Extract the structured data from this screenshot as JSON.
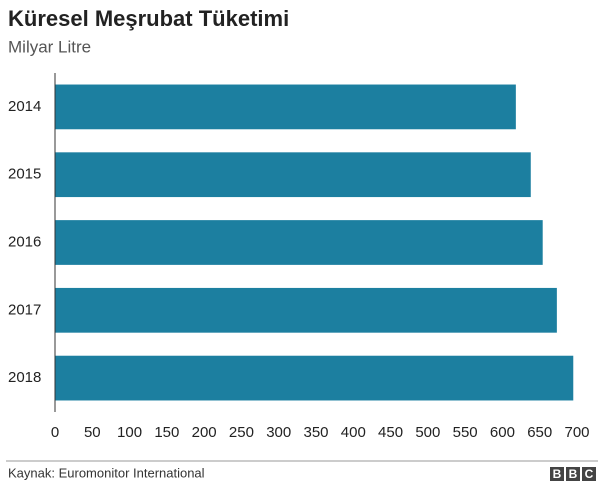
{
  "chart_data": {
    "type": "barh",
    "title": "Küresel Meşrubat Tüketimi",
    "subtitle": "Milyar Litre",
    "categories": [
      "2014",
      "2015",
      "2016",
      "2017",
      "2018"
    ],
    "values": [
      618,
      638,
      654,
      673,
      695
    ],
    "color": "#1c7fa0",
    "xlim": [
      0,
      700
    ],
    "xticks": [
      0,
      50,
      100,
      150,
      200,
      250,
      300,
      350,
      400,
      450,
      500,
      550,
      600,
      650,
      700
    ],
    "source": "Kaynak: Euromonitor International",
    "logo": [
      "B",
      "B",
      "C"
    ]
  }
}
